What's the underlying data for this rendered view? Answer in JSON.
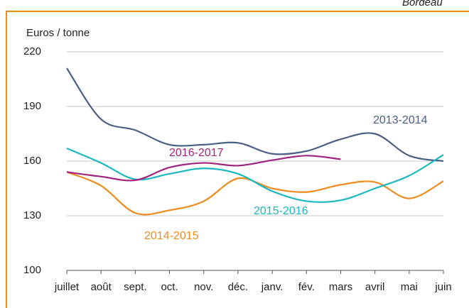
{
  "header": {
    "corner_text": "Bordeau"
  },
  "chart_data": {
    "type": "line",
    "y_label": "Euros / tonne",
    "categories": [
      "juillet",
      "août",
      "sept.",
      "oct.",
      "nov.",
      "déc.",
      "janv.",
      "fév.",
      "mars",
      "avril",
      "mai",
      "juin"
    ],
    "ylim": [
      100,
      220
    ],
    "yticks": [
      100,
      130,
      160,
      190,
      220
    ],
    "grid": true,
    "series": [
      {
        "name": "2013-2014",
        "color": "#4a5f84",
        "values": [
          211,
          183,
          177,
          169,
          169,
          170,
          164,
          165.5,
          172,
          175,
          163,
          160
        ]
      },
      {
        "name": "2014-2015",
        "color": "#f08c1e",
        "values": [
          154,
          146.5,
          131.5,
          133,
          138,
          150.5,
          145,
          143,
          147,
          148.5,
          139.5,
          149
        ]
      },
      {
        "name": "2015-2016",
        "color": "#1ab8c0",
        "values": [
          167,
          159,
          150,
          153,
          156,
          153,
          143.5,
          138,
          138.5,
          145,
          152,
          163.5
        ]
      },
      {
        "name": "2016-2017",
        "color": "#a0247e",
        "values": [
          154,
          151.5,
          149.5,
          156.5,
          159,
          157.5,
          160.5,
          163,
          161,
          null,
          null,
          null
        ]
      }
    ]
  }
}
